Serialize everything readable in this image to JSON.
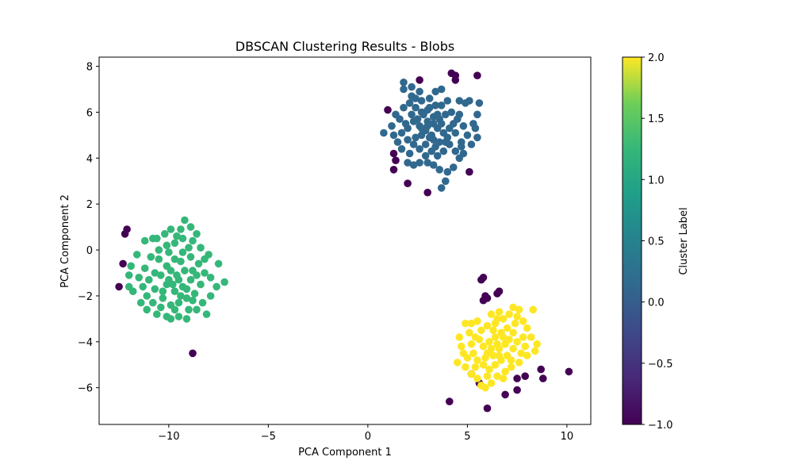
{
  "chart_data": {
    "type": "scatter",
    "title": "DBSCAN Clustering Results - Blobs",
    "xlabel": "PCA Component 1",
    "ylabel": "PCA Component 2",
    "xlim": [
      -13.5,
      11.2
    ],
    "ylim": [
      -7.6,
      8.4
    ],
    "x_ticks": [
      -10,
      -5,
      0,
      5,
      10
    ],
    "x_tick_labels": [
      "−10",
      "−5",
      "0",
      "5",
      "10"
    ],
    "y_ticks": [
      -6,
      -4,
      -2,
      0,
      2,
      4,
      6,
      8
    ],
    "y_tick_labels": [
      "−6",
      "−4",
      "−2",
      "0",
      "2",
      "4",
      "6",
      "8"
    ],
    "colorbar": {
      "label": "Cluster Label",
      "range": [
        -1.0,
        2.0
      ],
      "colormap": "viridis",
      "ticks": [
        -1.0,
        -0.5,
        0.0,
        0.5,
        1.0,
        1.5,
        2.0
      ],
      "tick_labels": [
        "−1.0",
        "−0.5",
        "0.0",
        "0.5",
        "1.0",
        "1.5",
        "2.0"
      ]
    },
    "grid": false,
    "series": [
      {
        "label_value": -1,
        "color": "#440154",
        "points": [
          [
            -12.1,
            0.9
          ],
          [
            -12.2,
            0.7
          ],
          [
            -12.3,
            -0.6
          ],
          [
            -12.5,
            -1.6
          ],
          [
            -8.8,
            -4.5
          ],
          [
            1.0,
            6.1
          ],
          [
            1.3,
            4.2
          ],
          [
            1.4,
            3.9
          ],
          [
            1.3,
            3.5
          ],
          [
            2.0,
            2.9
          ],
          [
            2.6,
            7.4
          ],
          [
            3.0,
            2.5
          ],
          [
            4.2,
            7.7
          ],
          [
            4.4,
            7.6
          ],
          [
            4.4,
            7.4
          ],
          [
            5.5,
            7.6
          ],
          [
            5.1,
            3.4
          ],
          [
            5.7,
            -1.3
          ],
          [
            5.8,
            -1.2
          ],
          [
            5.9,
            -2.0
          ],
          [
            5.8,
            -2.2
          ],
          [
            6.0,
            -2.1
          ],
          [
            6.6,
            -1.8
          ],
          [
            6.5,
            -1.9
          ],
          [
            4.1,
            -6.6
          ],
          [
            6.0,
            -6.9
          ],
          [
            6.9,
            -6.3
          ],
          [
            7.5,
            -6.1
          ],
          [
            7.5,
            -5.6
          ],
          [
            7.9,
            -5.5
          ],
          [
            8.7,
            -5.2
          ],
          [
            8.8,
            -5.6
          ],
          [
            10.1,
            -5.3
          ],
          [
            5.2,
            -5.4
          ],
          [
            5.6,
            -5.8
          ]
        ]
      },
      {
        "label_value": 0,
        "color": "#31688e",
        "points": [
          [
            1.8,
            7.0
          ],
          [
            1.8,
            7.3
          ],
          [
            2.2,
            7.1
          ],
          [
            2.7,
            6.5
          ],
          [
            3.1,
            6.6
          ],
          [
            3.4,
            6.9
          ],
          [
            3.7,
            7.0
          ],
          [
            4.6,
            6.5
          ],
          [
            4.9,
            6.4
          ],
          [
            5.1,
            6.5
          ],
          [
            5.6,
            6.4
          ],
          [
            5.5,
            5.9
          ],
          [
            5.4,
            5.3
          ],
          [
            5.5,
            4.9
          ],
          [
            5.2,
            4.6
          ],
          [
            4.7,
            4.5
          ],
          [
            4.6,
            4.0
          ],
          [
            4.3,
            3.6
          ],
          [
            4.0,
            3.4
          ],
          [
            3.9,
            3.0
          ],
          [
            3.7,
            2.7
          ],
          [
            3.6,
            3.5
          ],
          [
            3.3,
            3.7
          ],
          [
            3.0,
            3.8
          ],
          [
            2.6,
            3.8
          ],
          [
            2.3,
            3.7
          ],
          [
            2.0,
            3.8
          ],
          [
            1.7,
            4.4
          ],
          [
            1.5,
            4.7
          ],
          [
            1.3,
            5.0
          ],
          [
            0.8,
            5.1
          ],
          [
            1.2,
            5.4
          ],
          [
            1.4,
            5.9
          ],
          [
            1.8,
            6.2
          ],
          [
            2.1,
            6.4
          ],
          [
            2.4,
            6.2
          ],
          [
            2.7,
            6.0
          ],
          [
            3.0,
            6.1
          ],
          [
            3.3,
            5.8
          ],
          [
            3.6,
            5.7
          ],
          [
            3.9,
            5.9
          ],
          [
            4.2,
            6.0
          ],
          [
            4.5,
            5.7
          ],
          [
            4.8,
            5.4
          ],
          [
            4.4,
            5.1
          ],
          [
            4.1,
            5.3
          ],
          [
            3.8,
            5.1
          ],
          [
            3.5,
            5.3
          ],
          [
            3.2,
            5.0
          ],
          [
            2.9,
            5.2
          ],
          [
            2.6,
            5.4
          ],
          [
            2.3,
            5.6
          ],
          [
            2.0,
            5.3
          ],
          [
            1.7,
            5.1
          ],
          [
            2.0,
            4.8
          ],
          [
            2.3,
            4.6
          ],
          [
            2.6,
            4.4
          ],
          [
            2.9,
            4.6
          ],
          [
            3.2,
            4.3
          ],
          [
            3.5,
            4.1
          ],
          [
            3.8,
            4.3
          ],
          [
            4.1,
            4.6
          ],
          [
            4.4,
            4.3
          ],
          [
            4.7,
            4.7
          ],
          [
            5.0,
            5.0
          ],
          [
            5.3,
            5.5
          ],
          [
            3.0,
            5.6
          ],
          [
            3.1,
            6.2
          ],
          [
            2.8,
            5.9
          ],
          [
            2.5,
            5.7
          ],
          [
            2.2,
            5.9
          ],
          [
            3.4,
            6.3
          ],
          [
            3.7,
            6.3
          ],
          [
            4.0,
            6.5
          ],
          [
            2.4,
            4.9
          ],
          [
            2.7,
            5.0
          ],
          [
            3.3,
            4.8
          ],
          [
            3.6,
            4.7
          ],
          [
            3.9,
            4.7
          ],
          [
            2.1,
            4.2
          ],
          [
            1.9,
            5.5
          ],
          [
            2.4,
            6.6
          ],
          [
            3.0,
            5.4
          ],
          [
            3.5,
            5.9
          ],
          [
            4.3,
            5.5
          ],
          [
            4.6,
            5.9
          ],
          [
            2.9,
            4.1
          ],
          [
            3.4,
            4.5
          ],
          [
            2.2,
            6.7
          ],
          [
            2.6,
            6.9
          ],
          [
            4.8,
            4.2
          ],
          [
            1.6,
            5.7
          ],
          [
            3.7,
            5.5
          ],
          [
            4.0,
            4.9
          ],
          [
            3.1,
            4.9
          ],
          [
            2.7,
            5.3
          ],
          [
            3.3,
            5.5
          ]
        ]
      },
      {
        "label_value": 1,
        "color": "#35b779",
        "points": [
          [
            -9.2,
            1.3
          ],
          [
            -8.9,
            1.0
          ],
          [
            -9.4,
            0.9
          ],
          [
            -9.9,
            0.9
          ],
          [
            -10.2,
            0.7
          ],
          [
            -10.8,
            0.5
          ],
          [
            -11.2,
            0.4
          ],
          [
            -11.6,
            -0.2
          ],
          [
            -11.9,
            -0.7
          ],
          [
            -12.0,
            -1.1
          ],
          [
            -12.0,
            -1.6
          ],
          [
            -11.8,
            -1.8
          ],
          [
            -11.4,
            -2.3
          ],
          [
            -11.1,
            -2.6
          ],
          [
            -10.6,
            -2.8
          ],
          [
            -10.1,
            -2.9
          ],
          [
            -9.9,
            -3.0
          ],
          [
            -9.5,
            -2.9
          ],
          [
            -9.1,
            -3.0
          ],
          [
            -8.6,
            -2.6
          ],
          [
            -8.1,
            -2.8
          ],
          [
            -7.9,
            -2.0
          ],
          [
            -7.6,
            -1.6
          ],
          [
            -7.2,
            -1.4
          ],
          [
            -7.5,
            -0.6
          ],
          [
            -8.0,
            -0.2
          ],
          [
            -8.4,
            0.1
          ],
          [
            -8.8,
            0.4
          ],
          [
            -9.3,
            0.5
          ],
          [
            -9.7,
            0.3
          ],
          [
            -10.1,
            0.2
          ],
          [
            -10.5,
            0.0
          ],
          [
            -10.9,
            -0.3
          ],
          [
            -11.2,
            -0.8
          ],
          [
            -11.0,
            -1.3
          ],
          [
            -10.7,
            -1.7
          ],
          [
            -10.3,
            -2.1
          ],
          [
            -9.9,
            -2.4
          ],
          [
            -9.5,
            -2.3
          ],
          [
            -9.1,
            -2.1
          ],
          [
            -8.7,
            -1.9
          ],
          [
            -8.4,
            -1.5
          ],
          [
            -8.2,
            -1.0
          ],
          [
            -8.5,
            -0.6
          ],
          [
            -8.9,
            -0.3
          ],
          [
            -9.3,
            -0.1
          ],
          [
            -9.7,
            -0.4
          ],
          [
            -10.1,
            -0.7
          ],
          [
            -10.4,
            -1.1
          ],
          [
            -10.1,
            -1.5
          ],
          [
            -9.7,
            -1.8
          ],
          [
            -9.3,
            -1.6
          ],
          [
            -8.9,
            -1.3
          ],
          [
            -9.2,
            -0.9
          ],
          [
            -9.6,
            -1.1
          ],
          [
            -10.0,
            -1.3
          ],
          [
            -9.4,
            -0.5
          ],
          [
            -8.8,
            -0.9
          ],
          [
            -9.8,
            -1.5
          ],
          [
            -10.5,
            -0.4
          ],
          [
            -11.3,
            -1.6
          ],
          [
            -10.8,
            -2.3
          ],
          [
            -9.0,
            -2.6
          ],
          [
            -8.3,
            -2.3
          ],
          [
            -7.9,
            -1.2
          ],
          [
            -8.6,
            0.7
          ],
          [
            -9.6,
            0.6
          ],
          [
            -10.6,
            0.5
          ],
          [
            -11.5,
            -1.2
          ],
          [
            -9.5,
            -1.3
          ],
          [
            -9.9,
            -0.9
          ],
          [
            -9.1,
            -1.7
          ],
          [
            -8.6,
            -1.1
          ],
          [
            -10.3,
            -1.8
          ],
          [
            -9.4,
            -2.0
          ],
          [
            -10.7,
            -1.0
          ],
          [
            -8.8,
            -2.2
          ],
          [
            -9.7,
            -2.6
          ],
          [
            -10.4,
            -2.5
          ],
          [
            -11.1,
            -2.0
          ],
          [
            -8.2,
            -0.4
          ],
          [
            -9.0,
            0.1
          ],
          [
            -10.0,
            -0.1
          ]
        ]
      },
      {
        "label_value": 2,
        "color": "#fde725",
        "points": [
          [
            7.3,
            -2.5
          ],
          [
            7.6,
            -2.6
          ],
          [
            8.3,
            -2.6
          ],
          [
            6.6,
            -2.7
          ],
          [
            6.2,
            -2.8
          ],
          [
            5.5,
            -3.1
          ],
          [
            5.2,
            -3.2
          ],
          [
            4.9,
            -3.2
          ],
          [
            4.6,
            -3.8
          ],
          [
            4.7,
            -4.2
          ],
          [
            4.8,
            -4.5
          ],
          [
            4.5,
            -4.9
          ],
          [
            4.9,
            -5.1
          ],
          [
            5.2,
            -5.4
          ],
          [
            5.5,
            -5.6
          ],
          [
            5.7,
            -5.9
          ],
          [
            5.9,
            -6.0
          ],
          [
            6.2,
            -5.8
          ],
          [
            6.5,
            -5.5
          ],
          [
            6.9,
            -5.3
          ],
          [
            7.2,
            -5.1
          ],
          [
            7.6,
            -4.9
          ],
          [
            8.0,
            -4.6
          ],
          [
            8.4,
            -4.4
          ],
          [
            8.5,
            -4.1
          ],
          [
            8.2,
            -3.8
          ],
          [
            8.0,
            -3.4
          ],
          [
            7.8,
            -3.1
          ],
          [
            7.5,
            -2.9
          ],
          [
            7.1,
            -2.8
          ],
          [
            6.8,
            -3.0
          ],
          [
            6.4,
            -3.2
          ],
          [
            6.0,
            -3.3
          ],
          [
            5.7,
            -3.5
          ],
          [
            5.4,
            -3.8
          ],
          [
            5.2,
            -4.1
          ],
          [
            5.3,
            -4.5
          ],
          [
            5.5,
            -4.8
          ],
          [
            5.8,
            -5.0
          ],
          [
            6.1,
            -5.2
          ],
          [
            6.4,
            -5.0
          ],
          [
            6.7,
            -4.8
          ],
          [
            7.0,
            -4.6
          ],
          [
            7.3,
            -4.3
          ],
          [
            7.5,
            -4.0
          ],
          [
            7.3,
            -3.6
          ],
          [
            7.0,
            -3.4
          ],
          [
            6.7,
            -3.6
          ],
          [
            6.4,
            -3.8
          ],
          [
            6.1,
            -4.0
          ],
          [
            5.8,
            -4.2
          ],
          [
            6.0,
            -4.5
          ],
          [
            6.3,
            -4.6
          ],
          [
            6.6,
            -4.3
          ],
          [
            6.9,
            -4.1
          ],
          [
            7.1,
            -3.9
          ],
          [
            6.8,
            -3.8
          ],
          [
            6.5,
            -4.1
          ],
          [
            6.2,
            -4.3
          ],
          [
            5.9,
            -4.7
          ],
          [
            6.6,
            -4.6
          ],
          [
            7.2,
            -4.8
          ],
          [
            7.7,
            -4.5
          ],
          [
            7.8,
            -3.8
          ],
          [
            6.3,
            -3.5
          ],
          [
            5.6,
            -3.9
          ],
          [
            5.0,
            -4.7
          ],
          [
            6.8,
            -5.6
          ],
          [
            7.4,
            -3.2
          ],
          [
            7.9,
            -4.2
          ],
          [
            6.0,
            -5.5
          ],
          [
            5.4,
            -5.1
          ],
          [
            6.5,
            -3.0
          ],
          [
            5.1,
            -3.6
          ]
        ]
      }
    ]
  }
}
